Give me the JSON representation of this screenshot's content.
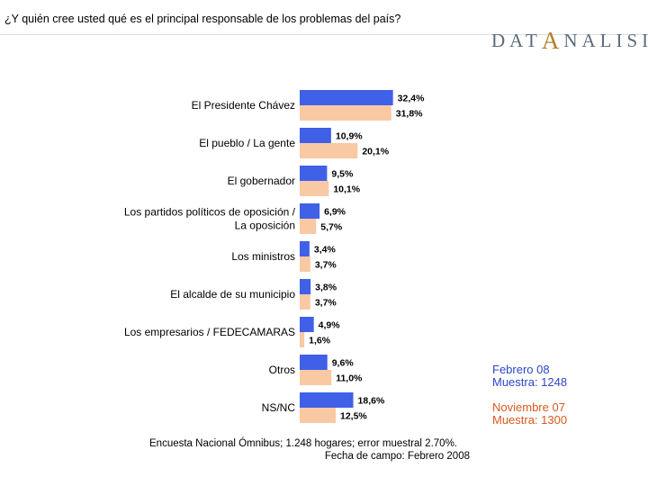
{
  "header": {
    "question": "¿Y quién cree usted qué es el principal responsable de los problemas del país?",
    "logo_left": "DAT",
    "logo_mid": "A",
    "logo_right": "NALISIS"
  },
  "legend": {
    "series1_line1": "Febrero 08",
    "series1_line2": "Muestra: 1248",
    "series2_line1": "Noviembre 07",
    "series2_line2": "Muestra: 1300"
  },
  "footnote": {
    "line1": "Encuesta Nacional Ómnibus; 1.248 hogares; error muestral 2.70%.",
    "line2": "Fecha de campo: Febrero 2008"
  },
  "colors": {
    "series1": "#4060e8",
    "series2": "#f9c9a4",
    "legend1_text": "#2c47c9",
    "legend2_text": "#d85a1a"
  },
  "chart_data": {
    "type": "bar",
    "orientation": "horizontal",
    "title": "¿Y quién cree usted qué es el principal responsable de los problemas del país?",
    "categories": [
      [
        "El Presidente Chávez"
      ],
      [
        "El pueblo / La gente"
      ],
      [
        "El gobernador"
      ],
      [
        "Los partidos políticos de oposición /",
        "La oposición"
      ],
      [
        "Los ministros"
      ],
      [
        "El alcalde de su municipio"
      ],
      [
        "Los empresarios / FEDECAMARAS"
      ],
      [
        "Otros"
      ],
      [
        "NS/NC"
      ]
    ],
    "series": [
      {
        "name": "Febrero 08",
        "values": [
          32.4,
          10.9,
          9.5,
          6.9,
          3.4,
          3.8,
          4.9,
          9.6,
          18.6
        ],
        "labels": [
          "32,4%",
          "10,9%",
          "9,5%",
          "6,9%",
          "3,4%",
          "3,8%",
          "4,9%",
          "9,6%",
          "18,6%"
        ]
      },
      {
        "name": "Noviembre 07",
        "values": [
          31.8,
          20.1,
          10.1,
          5.7,
          3.7,
          3.7,
          1.6,
          11.0,
          12.5
        ],
        "labels": [
          "31,8%",
          "20,1%",
          "10,1%",
          "5,7%",
          "3,7%",
          "3,7%",
          "1,6%",
          "11,0%",
          "12,5%"
        ]
      }
    ],
    "xlabel": "",
    "ylabel": "",
    "unit": "%",
    "grid": false
  }
}
